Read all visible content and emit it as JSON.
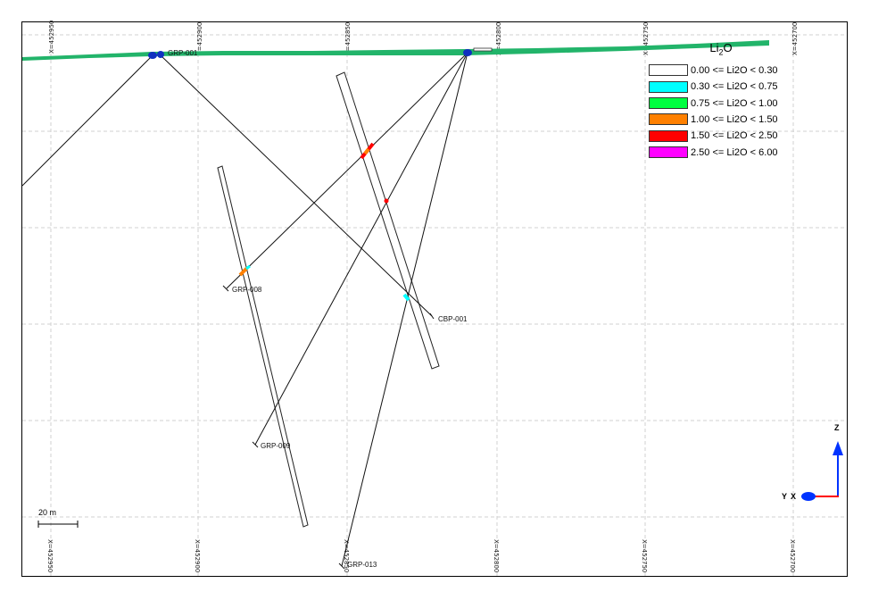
{
  "legend": {
    "title_main": "Li",
    "title_sub": "2",
    "title_tail": "O",
    "items": [
      {
        "label": "0.00 <= Li2O < 0.30",
        "color": "#ffffff"
      },
      {
        "label": "0.30 <= Li2O < 0.75",
        "color": "#00ffff"
      },
      {
        "label": "0.75 <= Li2O < 1.00",
        "color": "#00ff40"
      },
      {
        "label": "1.00 <= Li2O < 1.50",
        "color": "#ff8000"
      },
      {
        "label": "1.50 <= Li2O < 2.50",
        "color": "#ff0000"
      },
      {
        "label": "2.50 <= Li2O < 6.00",
        "color": "#ff00ff"
      }
    ]
  },
  "grid_labels": [
    "X=452950",
    "X=452900",
    "X=452850",
    "X=452800",
    "X=452750",
    "X=452700"
  ],
  "holes": {
    "top_left": "GRP-001",
    "grp008": "GRP-008",
    "cbp001": "CBP-001",
    "grp009": "GRP-009",
    "grp013": "GRP-013"
  },
  "scale": {
    "label": "20 m"
  },
  "axes": {
    "z": "Z",
    "y": "Y",
    "x": "X"
  },
  "colors": {
    "topo": "#22b46a",
    "collar": "#1030c0",
    "axis_blue": "#0033ff",
    "axis_red": "#ff0000"
  }
}
